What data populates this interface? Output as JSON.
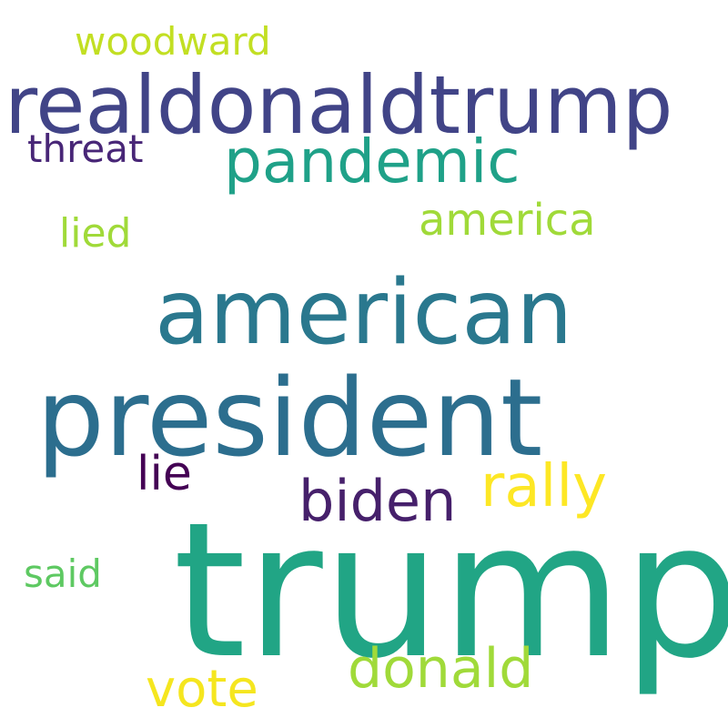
{
  "words": [
    {
      "id": "woodward",
      "text": "woodward",
      "color": "#c2df23"
    },
    {
      "id": "realdonaldtrump",
      "text": "realdonaldtrump",
      "color": "#414487"
    },
    {
      "id": "threat",
      "text": "threat",
      "color": "#482677"
    },
    {
      "id": "pandemic",
      "text": "pandemic",
      "color": "#1fa188"
    },
    {
      "id": "america",
      "text": "america",
      "color": "#a0da39"
    },
    {
      "id": "lied",
      "text": "lied",
      "color": "#a0da39"
    },
    {
      "id": "american",
      "text": "american",
      "color": "#2a788e"
    },
    {
      "id": "president",
      "text": "president",
      "color": "#2c6e8e"
    },
    {
      "id": "lie",
      "text": "lie",
      "color": "#440154"
    },
    {
      "id": "rally",
      "text": "rally",
      "color": "#fde725"
    },
    {
      "id": "biden",
      "text": "biden",
      "color": "#46206b"
    },
    {
      "id": "trump",
      "text": "trump",
      "color": "#21a585"
    },
    {
      "id": "said",
      "text": "said",
      "color": "#5ec962"
    },
    {
      "id": "donald",
      "text": "donald",
      "color": "#a0da39"
    },
    {
      "id": "vote",
      "text": "vote",
      "color": "#f5e61f"
    }
  ]
}
